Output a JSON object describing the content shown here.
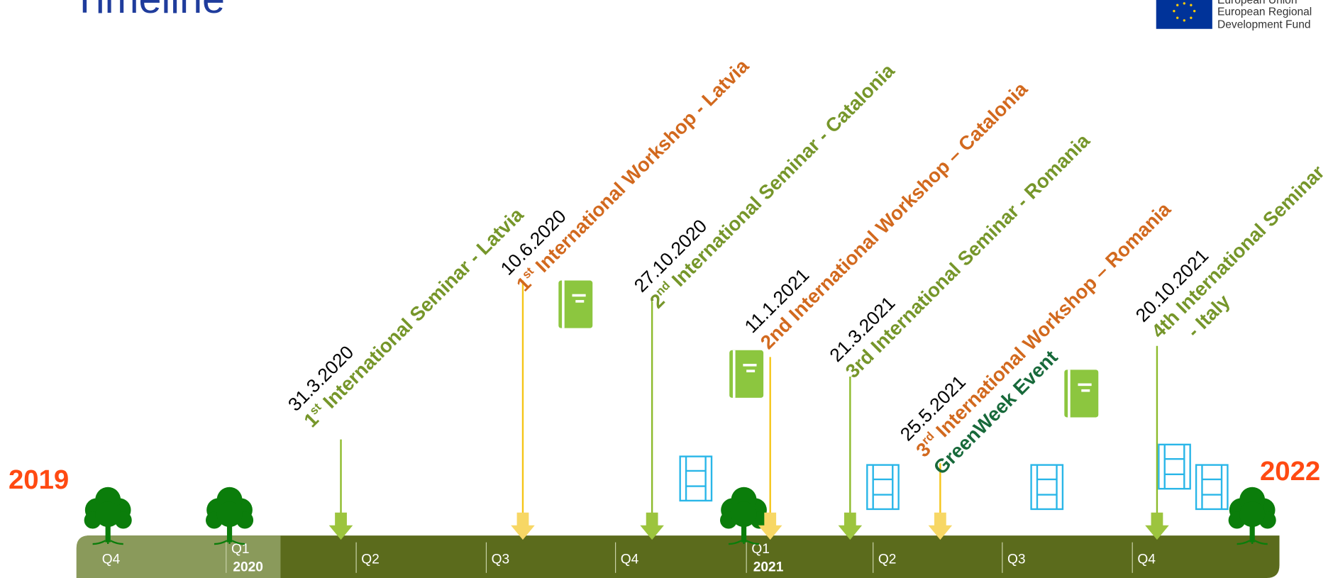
{
  "header": {
    "title": "Timeline",
    "logo_lines": [
      "European Union",
      "European Regional",
      "Development Fund"
    ]
  },
  "timeline": {
    "start_year": "2019",
    "end_year": "2022",
    "quarters": [
      {
        "label": "Q4"
      },
      {
        "label": "Q1",
        "year": "2020"
      },
      {
        "label": "Q2"
      },
      {
        "label": "Q3"
      },
      {
        "label": "Q4"
      },
      {
        "label": "Q1",
        "year": "2021"
      },
      {
        "label": "Q2"
      },
      {
        "label": "Q3"
      },
      {
        "label": "Q4"
      }
    ],
    "events": [
      {
        "date": "31.3.2020",
        "num": "1",
        "sup": "st",
        "text": " International Seminar - Latvia",
        "color": "#76962a"
      },
      {
        "date": "10.6.2020",
        "num": "1",
        "sup": "st",
        "text": " International Workshop - Latvia",
        "color": "#d2691e"
      },
      {
        "date": "27.10.2020",
        "num": "2",
        "sup": "nd",
        "text": " International Seminar - Catalonia",
        "color": "#76962a"
      },
      {
        "date": "11.1.2021",
        "text": "2nd International Workshop – Catalonia",
        "color": "#d2691e"
      },
      {
        "date": "21.3.2021",
        "text": "3rd International Seminar - Romania",
        "color": "#76962a"
      },
      {
        "date": "25.5.2021",
        "num": "3",
        "sup": "rd",
        "text": " International Workshop – Romania",
        "extra": "GreenWeek Event",
        "color": "#d2691e",
        "extra_color": "#17693a"
      },
      {
        "date": "20.10.2021",
        "text": "4th International Seminar",
        "extra": "- Italy",
        "color": "#76962a",
        "extra_color": "#76962a"
      }
    ]
  }
}
